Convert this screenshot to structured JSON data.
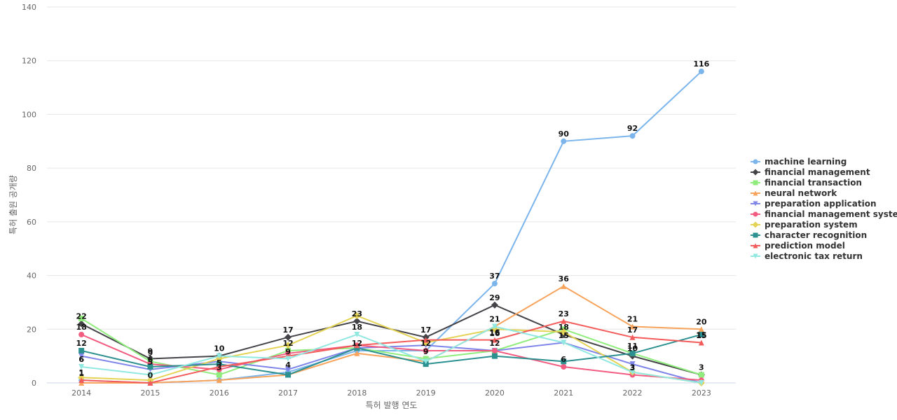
{
  "chart_data": {
    "type": "line",
    "xlabel": "특허 발행 연도",
    "ylabel": "특허 출원 공개량",
    "ylim": [
      0,
      140
    ],
    "yticks": [
      0,
      20,
      40,
      60,
      80,
      100,
      120,
      140
    ],
    "x": [
      "2014",
      "2015",
      "2016",
      "2017",
      "2018",
      "2019",
      "2020",
      "2021",
      "2022",
      "2023"
    ],
    "grid": true,
    "legend_position": "right",
    "series": [
      {
        "name": "machine learning",
        "color": "#7cb5ec",
        "marker": "circle",
        "values": [
          1,
          0,
          1,
          4,
          12,
          12,
          37,
          90,
          92,
          116
        ],
        "labeled": [
          true,
          false,
          false,
          false,
          false,
          false,
          true,
          true,
          true,
          true
        ]
      },
      {
        "name": "financial management",
        "color": "#434348",
        "marker": "diamond",
        "values": [
          22,
          9,
          10,
          17,
          23,
          17,
          29,
          18,
          10,
          3
        ],
        "labeled": [
          true,
          true,
          true,
          true,
          true,
          true,
          true,
          true,
          true,
          true
        ]
      },
      {
        "name": "financial transaction",
        "color": "#90ed7d",
        "marker": "square",
        "values": [
          24,
          8,
          3,
          12,
          13,
          9,
          12,
          20,
          11,
          3
        ],
        "labeled": [
          false,
          false,
          true,
          false,
          false,
          false,
          false,
          false,
          false,
          false
        ]
      },
      {
        "name": "neural network",
        "color": "#f7a35c",
        "marker": "triangle",
        "values": [
          0,
          0,
          1,
          3,
          11,
          8,
          21,
          36,
          21,
          20
        ],
        "labeled": [
          false,
          false,
          false,
          false,
          false,
          false,
          true,
          true,
          true,
          true
        ]
      },
      {
        "name": "preparation application",
        "color": "#8085e9",
        "marker": "triangle-down",
        "values": [
          10,
          5,
          8,
          5,
          13,
          14,
          12,
          15,
          7,
          0
        ],
        "labeled": [
          false,
          false,
          false,
          false,
          false,
          false,
          false,
          false,
          false,
          false
        ]
      },
      {
        "name": "financial management system",
        "color": "#f15c80",
        "marker": "circle",
        "values": [
          18,
          7,
          5,
          11,
          14,
          12,
          12,
          6,
          3,
          1
        ],
        "labeled": [
          true,
          false,
          false,
          false,
          false,
          false,
          false,
          false,
          true,
          false
        ]
      },
      {
        "name": "preparation system",
        "color": "#e4d354",
        "marker": "diamond",
        "values": [
          2,
          1,
          9,
          14,
          25,
          15,
          20,
          19,
          4,
          0
        ],
        "labeled": [
          false,
          false,
          false,
          false,
          false,
          false,
          false,
          false,
          false,
          false
        ]
      },
      {
        "name": "character recognition",
        "color": "#2b908f",
        "marker": "square",
        "values": [
          12,
          6,
          7,
          3,
          13,
          7,
          10,
          8,
          11,
          18
        ],
        "labeled": [
          true,
          true,
          false,
          false,
          false,
          false,
          false,
          false,
          true,
          false
        ]
      },
      {
        "name": "prediction model",
        "color": "#f45b5b",
        "marker": "triangle",
        "values": [
          1,
          0,
          6,
          10,
          14,
          16,
          16,
          23,
          17,
          15
        ],
        "labeled": [
          false,
          false,
          false,
          false,
          false,
          false,
          true,
          true,
          true,
          true
        ]
      },
      {
        "name": "electronic tax return",
        "color": "#91e8e1",
        "marker": "triangle-down",
        "values": [
          6,
          3,
          10,
          9,
          18,
          8,
          21,
          15,
          4,
          0
        ],
        "labeled": [
          true,
          false,
          false,
          false,
          true,
          false,
          false,
          false,
          false,
          false
        ]
      }
    ],
    "extra_labels": [
      {
        "x": "2015",
        "text": "9"
      },
      {
        "x": "2015",
        "text": "5"
      },
      {
        "x": "2015",
        "text": "0"
      },
      {
        "x": "2016",
        "text": "5"
      },
      {
        "x": "2017",
        "text": "12"
      },
      {
        "x": "2017",
        "text": "9"
      },
      {
        "x": "2017",
        "text": "4"
      },
      {
        "x": "2018",
        "text": "12"
      },
      {
        "x": "2019",
        "text": "12"
      },
      {
        "x": "2019",
        "text": "9"
      },
      {
        "x": "2020",
        "text": "16"
      },
      {
        "x": "2020",
        "text": "12"
      },
      {
        "x": "2021",
        "text": "15"
      },
      {
        "x": "2021",
        "text": "6"
      },
      {
        "x": "2022",
        "text": "3"
      },
      {
        "x": "2023",
        "text": "15"
      },
      {
        "x": "2014",
        "text": "6"
      },
      {
        "x": "2014",
        "text": "1"
      }
    ]
  }
}
